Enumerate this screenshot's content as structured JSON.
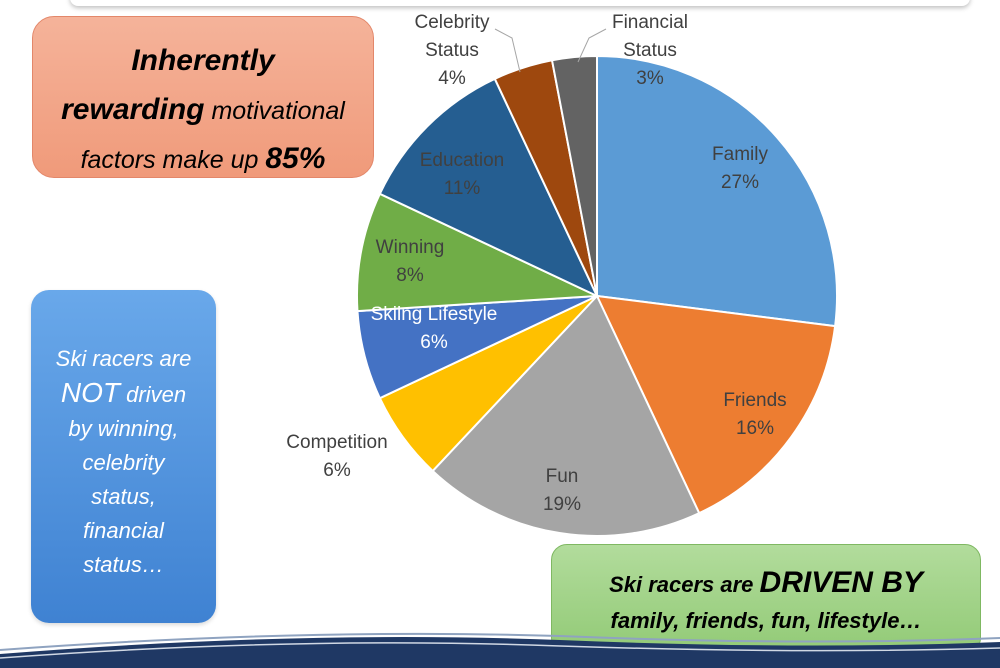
{
  "chart_data": {
    "type": "pie",
    "title": "",
    "slices": [
      {
        "label": "Family",
        "value": 27,
        "pct_label": "27%",
        "color": "#5b9bd5"
      },
      {
        "label": "Friends",
        "value": 16,
        "pct_label": "16%",
        "color": "#ed7d31"
      },
      {
        "label": "Fun",
        "value": 19,
        "pct_label": "19%",
        "color": "#a5a5a5"
      },
      {
        "label": "Competition",
        "value": 6,
        "pct_label": "6%",
        "color": "#ffc000"
      },
      {
        "label": "Skiing Lifestyle",
        "value": 6,
        "pct_label": "6%",
        "color": "#4472c4"
      },
      {
        "label": "Winning",
        "value": 8,
        "pct_label": "8%",
        "color": "#70ad47"
      },
      {
        "label": "Education",
        "value": 11,
        "pct_label": "11%",
        "color": "#255e91"
      },
      {
        "label": "Celebrity Status",
        "value": 4,
        "pct_label": "4%",
        "color": "#9e480e"
      },
      {
        "label": "Financial Status",
        "value": 3,
        "pct_label": "3%",
        "color": "#636363"
      }
    ]
  },
  "callouts": {
    "rewarding": {
      "line1": "Inherently",
      "line2_bold": "rewarding",
      "line2_rest": " motivational",
      "line3_rest": "factors make up ",
      "line3_bold": "85%"
    },
    "not_driven": {
      "l1": "Ski racers are",
      "l2_big": "NOT",
      "l2_rest": " driven",
      "l3": "by winning,",
      "l4": "celebrity",
      "l5": "status,",
      "l6": "financial",
      "l7": "status…"
    },
    "driven": {
      "l1_prefix": "Ski racers are ",
      "l1_big": "DRIVEN BY",
      "l2": "family, friends, fun, lifestyle…"
    }
  }
}
